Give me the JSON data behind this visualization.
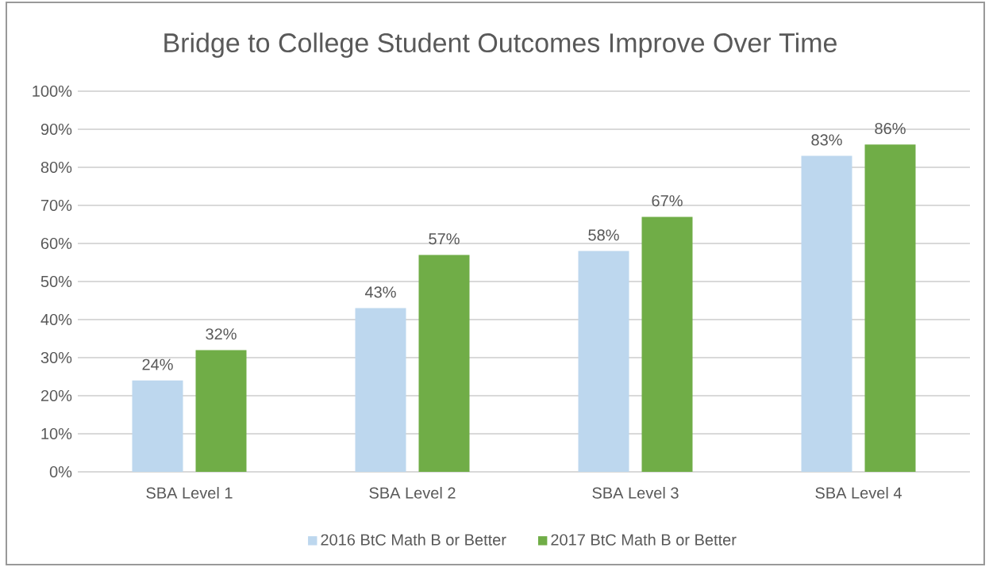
{
  "chart_data": {
    "type": "bar",
    "title": "Bridge to College Student Outcomes Improve Over Time",
    "categories": [
      "SBA Level 1",
      "SBA Level 2",
      "SBA Level 3",
      "SBA Level 4"
    ],
    "series": [
      {
        "name": "2016 BtC Math B or Better",
        "color": "#bdd7ee",
        "values": [
          24,
          43,
          58,
          83
        ],
        "value_labels": [
          "24%",
          "43%",
          "58%",
          "83%"
        ]
      },
      {
        "name": "2017 BtC Math B or Better",
        "color": "#70ad47",
        "values": [
          32,
          57,
          67,
          86
        ],
        "value_labels": [
          "32%",
          "57%",
          "67%",
          "86%"
        ]
      }
    ],
    "ylim": [
      0,
      100
    ],
    "yticks": [
      {
        "value": 0,
        "label": "0%"
      },
      {
        "value": 10,
        "label": "10%"
      },
      {
        "value": 20,
        "label": "20%"
      },
      {
        "value": 30,
        "label": "30%"
      },
      {
        "value": 40,
        "label": "40%"
      },
      {
        "value": 50,
        "label": "50%"
      },
      {
        "value": 60,
        "label": "60%"
      },
      {
        "value": 70,
        "label": "70%"
      },
      {
        "value": 80,
        "label": "80%"
      },
      {
        "value": 90,
        "label": "90%"
      },
      {
        "value": 100,
        "label": "100%"
      }
    ],
    "grid": "y",
    "legend": "bottom"
  }
}
